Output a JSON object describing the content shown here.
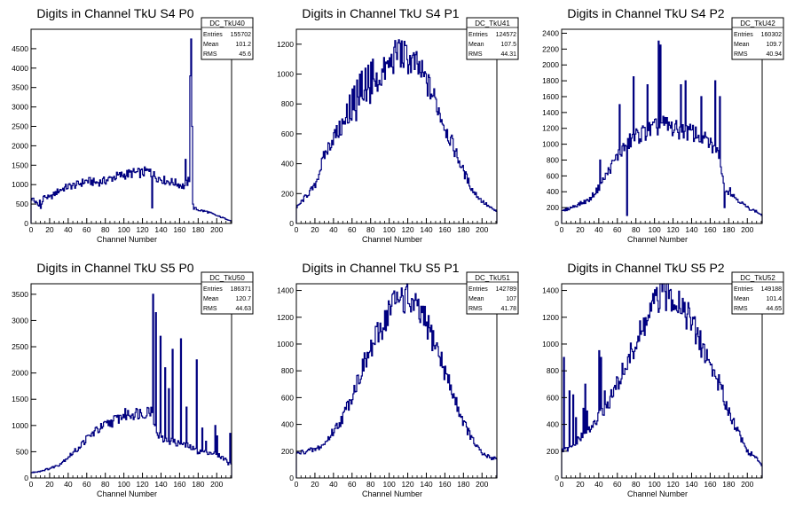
{
  "line_color": "#000080",
  "chart_data": [
    {
      "type": "histogram",
      "title": "Digits in Channel TkU S4 P0",
      "xlabel": "Channel Number",
      "xlim": [
        0,
        216
      ],
      "ylim": [
        0,
        5000
      ],
      "xticks": [
        0,
        20,
        40,
        60,
        80,
        100,
        120,
        140,
        160,
        180,
        200
      ],
      "yticks": [
        500,
        1000,
        1500,
        2000,
        2500,
        3000,
        3500,
        4000,
        4500
      ],
      "stats": {
        "name": "DC_TkU40",
        "entries": "155702",
        "mean": "101.2",
        "rms": "45.6"
      },
      "profile": [
        [
          0,
          650
        ],
        [
          5,
          550
        ],
        [
          10,
          400
        ],
        [
          15,
          700
        ],
        [
          20,
          650
        ],
        [
          30,
          850
        ],
        [
          40,
          950
        ],
        [
          50,
          1000
        ],
        [
          60,
          1100
        ],
        [
          70,
          1050
        ],
        [
          80,
          1100
        ],
        [
          90,
          1200
        ],
        [
          100,
          1250
        ],
        [
          110,
          1300
        ],
        [
          120,
          1300
        ],
        [
          125,
          1350
        ],
        [
          135,
          1200
        ],
        [
          145,
          1100
        ],
        [
          155,
          1050
        ],
        [
          165,
          950
        ],
        [
          170,
          1100
        ],
        [
          175,
          400
        ],
        [
          180,
          350
        ],
        [
          190,
          300
        ],
        [
          200,
          200
        ],
        [
          210,
          120
        ],
        [
          216,
          60
        ]
      ],
      "spikes": [
        [
          2,
          650
        ],
        [
          9,
          600
        ],
        [
          13,
          700
        ],
        [
          128,
          1400
        ],
        [
          130,
          400
        ],
        [
          166,
          1650
        ],
        [
          171,
          3800
        ],
        [
          172,
          4750
        ],
        [
          173,
          2500
        ]
      ]
    },
    {
      "type": "histogram",
      "title": "Digits in Channel TkU S4 P1",
      "xlabel": "Channel Number",
      "xlim": [
        0,
        216
      ],
      "ylim": [
        0,
        1300
      ],
      "xticks": [
        0,
        20,
        40,
        60,
        80,
        100,
        120,
        140,
        160,
        180,
        200
      ],
      "yticks": [
        200,
        400,
        600,
        800,
        1000,
        1200
      ],
      "stats": {
        "name": "DC_TkU41",
        "entries": "124572",
        "mean": "107.5",
        "rms": "44.31"
      },
      "profile": [
        [
          0,
          100
        ],
        [
          10,
          180
        ],
        [
          20,
          250
        ],
        [
          30,
          450
        ],
        [
          40,
          580
        ],
        [
          50,
          650
        ],
        [
          60,
          720
        ],
        [
          70,
          800
        ],
        [
          80,
          880
        ],
        [
          90,
          980
        ],
        [
          100,
          1060
        ],
        [
          110,
          1150
        ],
        [
          120,
          1100
        ],
        [
          130,
          1050
        ],
        [
          140,
          950
        ],
        [
          150,
          820
        ],
        [
          160,
          650
        ],
        [
          170,
          500
        ],
        [
          180,
          350
        ],
        [
          190,
          220
        ],
        [
          200,
          150
        ],
        [
          210,
          100
        ],
        [
          216,
          80
        ]
      ],
      "spikes": [
        [
          49,
          700
        ],
        [
          54,
          800
        ],
        [
          57,
          860
        ],
        [
          60,
          900
        ],
        [
          62,
          920
        ],
        [
          65,
          960
        ],
        [
          68,
          1000
        ],
        [
          70,
          1020
        ],
        [
          74,
          1040
        ],
        [
          77,
          1060
        ],
        [
          80,
          1080
        ],
        [
          82,
          1100
        ],
        [
          110,
          1230
        ]
      ]
    },
    {
      "type": "histogram",
      "title": "Digits in Channel TkU S4 P2",
      "xlabel": "Channel Number",
      "xlim": [
        0,
        216
      ],
      "ylim": [
        0,
        2450
      ],
      "xticks": [
        0,
        20,
        40,
        60,
        80,
        100,
        120,
        140,
        160,
        180,
        200
      ],
      "yticks": [
        200,
        400,
        600,
        800,
        1000,
        1200,
        1400,
        1600,
        1800,
        2000,
        2200,
        2400
      ],
      "stats": {
        "name": "DC_TkU42",
        "entries": "160302",
        "mean": "109.7",
        "rms": "40.94"
      },
      "profile": [
        [
          0,
          150
        ],
        [
          10,
          200
        ],
        [
          20,
          250
        ],
        [
          30,
          300
        ],
        [
          40,
          450
        ],
        [
          50,
          650
        ],
        [
          60,
          850
        ],
        [
          70,
          1000
        ],
        [
          80,
          1100
        ],
        [
          90,
          1150
        ],
        [
          100,
          1200
        ],
        [
          110,
          1250
        ],
        [
          120,
          1200
        ],
        [
          130,
          1150
        ],
        [
          140,
          1150
        ],
        [
          150,
          1100
        ],
        [
          160,
          1000
        ],
        [
          170,
          850
        ],
        [
          175,
          450
        ],
        [
          180,
          400
        ],
        [
          190,
          300
        ],
        [
          200,
          200
        ],
        [
          210,
          150
        ],
        [
          216,
          100
        ]
      ],
      "spikes": [
        [
          41,
          800
        ],
        [
          62,
          1500
        ],
        [
          70,
          100
        ],
        [
          77,
          1850
        ],
        [
          92,
          1750
        ],
        [
          104,
          2300
        ],
        [
          106,
          2250
        ],
        [
          128,
          1750
        ],
        [
          133,
          1800
        ],
        [
          150,
          1600
        ],
        [
          165,
          1800
        ],
        [
          170,
          1600
        ],
        [
          175,
          200
        ],
        [
          181,
          450
        ]
      ]
    },
    {
      "type": "histogram",
      "title": "Digits in Channel TkU S5 P0",
      "xlabel": "Channel Number",
      "xlim": [
        0,
        216
      ],
      "ylim": [
        0,
        3700
      ],
      "xticks": [
        0,
        20,
        40,
        60,
        80,
        100,
        120,
        140,
        160,
        180,
        200
      ],
      "yticks": [
        500,
        1000,
        1500,
        2000,
        2500,
        3000,
        3500
      ],
      "stats": {
        "name": "DC_TkU50",
        "entries": "186371",
        "mean": "120.7",
        "rms": "44.63"
      },
      "profile": [
        [
          0,
          100
        ],
        [
          10,
          130
        ],
        [
          20,
          180
        ],
        [
          30,
          250
        ],
        [
          40,
          400
        ],
        [
          50,
          550
        ],
        [
          60,
          750
        ],
        [
          70,
          900
        ],
        [
          80,
          1000
        ],
        [
          90,
          1100
        ],
        [
          100,
          1200
        ],
        [
          110,
          1230
        ],
        [
          120,
          1250
        ],
        [
          130,
          1300
        ],
        [
          135,
          900
        ],
        [
          140,
          750
        ],
        [
          150,
          700
        ],
        [
          160,
          650
        ],
        [
          170,
          600
        ],
        [
          180,
          500
        ],
        [
          190,
          500
        ],
        [
          200,
          450
        ],
        [
          210,
          350
        ],
        [
          216,
          250
        ]
      ],
      "spikes": [
        [
          123,
          1150
        ],
        [
          131,
          3500
        ],
        [
          134,
          3150
        ],
        [
          139,
          2700
        ],
        [
          144,
          2100
        ],
        [
          148,
          1700
        ],
        [
          152,
          2450
        ],
        [
          161,
          2650
        ],
        [
          167,
          1350
        ],
        [
          178,
          2250
        ],
        [
          184,
          950
        ],
        [
          188,
          700
        ],
        [
          198,
          1000
        ],
        [
          200,
          800
        ],
        [
          212,
          250
        ],
        [
          214,
          850
        ]
      ]
    },
    {
      "type": "histogram",
      "title": "Digits in Channel TkU S5 P1",
      "xlabel": "Channel Number",
      "xlim": [
        0,
        216
      ],
      "ylim": [
        0,
        1450
      ],
      "xticks": [
        0,
        20,
        40,
        60,
        80,
        100,
        120,
        140,
        160,
        180,
        200
      ],
      "yticks": [
        200,
        400,
        600,
        800,
        1000,
        1200,
        1400
      ],
      "stats": {
        "name": "DC_TkU51",
        "entries": "142789",
        "mean": "107",
        "rms": "41.78"
      },
      "profile": [
        [
          0,
          180
        ],
        [
          10,
          200
        ],
        [
          20,
          210
        ],
        [
          30,
          250
        ],
        [
          40,
          350
        ],
        [
          50,
          450
        ],
        [
          60,
          620
        ],
        [
          70,
          800
        ],
        [
          80,
          950
        ],
        [
          90,
          1100
        ],
        [
          100,
          1250
        ],
        [
          110,
          1340
        ],
        [
          120,
          1330
        ],
        [
          130,
          1250
        ],
        [
          140,
          1150
        ],
        [
          150,
          1000
        ],
        [
          160,
          800
        ],
        [
          170,
          600
        ],
        [
          180,
          420
        ],
        [
          190,
          280
        ],
        [
          200,
          180
        ],
        [
          210,
          150
        ],
        [
          216,
          150
        ]
      ],
      "spikes": [
        [
          103,
          1370
        ],
        [
          112,
          1350
        ]
      ]
    },
    {
      "type": "histogram",
      "title": "Digits in Channel TkU S5 P2",
      "xlabel": "Channel Number",
      "xlim": [
        0,
        216
      ],
      "ylim": [
        0,
        1450
      ],
      "xticks": [
        0,
        20,
        40,
        60,
        80,
        100,
        120,
        140,
        160,
        180,
        200
      ],
      "yticks": [
        200,
        400,
        600,
        800,
        1000,
        1200,
        1400
      ],
      "stats": {
        "name": "DC_TkU52",
        "entries": "149188",
        "mean": "101.4",
        "rms": "44.65"
      },
      "profile": [
        [
          0,
          200
        ],
        [
          10,
          220
        ],
        [
          20,
          300
        ],
        [
          30,
          350
        ],
        [
          40,
          450
        ],
        [
          50,
          550
        ],
        [
          60,
          700
        ],
        [
          70,
          850
        ],
        [
          80,
          1000
        ],
        [
          90,
          1150
        ],
        [
          100,
          1300
        ],
        [
          110,
          1380
        ],
        [
          120,
          1370
        ],
        [
          130,
          1300
        ],
        [
          140,
          1150
        ],
        [
          150,
          1000
        ],
        [
          160,
          850
        ],
        [
          170,
          700
        ],
        [
          180,
          500
        ],
        [
          190,
          350
        ],
        [
          200,
          200
        ],
        [
          210,
          150
        ],
        [
          216,
          80
        ]
      ],
      "spikes": [
        [
          2,
          900
        ],
        [
          8,
          650
        ],
        [
          12,
          620
        ],
        [
          15,
          450
        ],
        [
          23,
          520
        ],
        [
          25,
          700
        ],
        [
          27,
          500
        ],
        [
          34,
          420
        ],
        [
          40,
          950
        ],
        [
          42,
          900
        ],
        [
          46,
          650
        ],
        [
          141,
          1200
        ]
      ]
    }
  ]
}
